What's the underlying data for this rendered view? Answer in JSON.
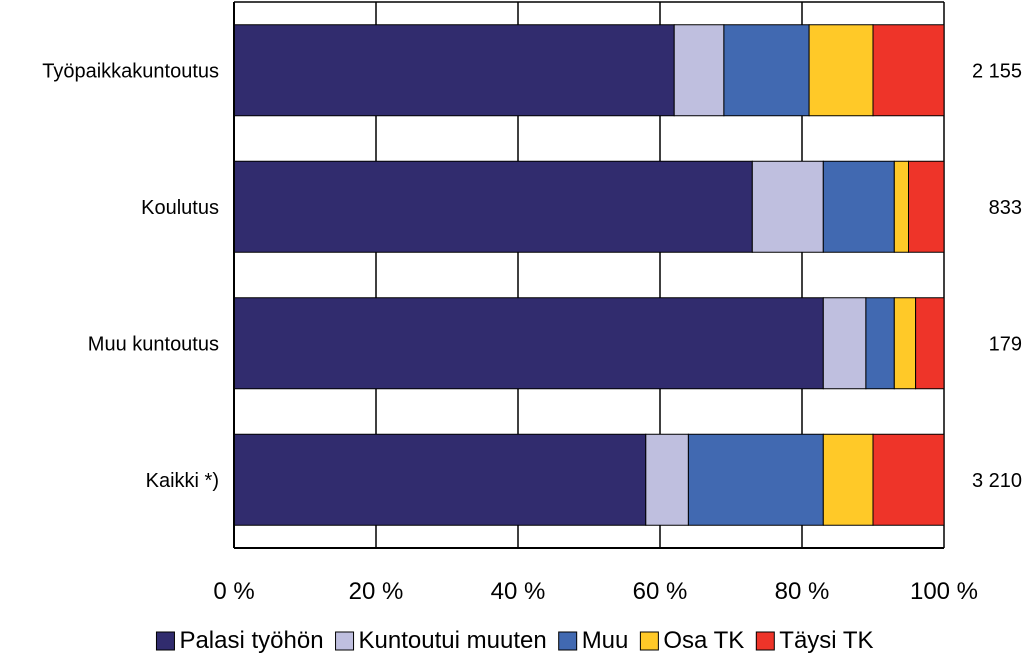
{
  "chart_data": {
    "type": "bar",
    "orientation": "horizontal",
    "stacked": "percent",
    "categories": [
      "Työpaikkakuntoutus",
      "Koulutus",
      "Muu kuntoutus",
      "Kaikki *)"
    ],
    "counts": [
      "2 155",
      "833",
      "179",
      "3 210"
    ],
    "series": [
      {
        "name": "Palasi työhön",
        "color": "#312C6E",
        "values": [
          62,
          73,
          83,
          58
        ]
      },
      {
        "name": "Kuntoutui muuten",
        "color": "#BFBFDF",
        "values": [
          7,
          10,
          6,
          6
        ]
      },
      {
        "name": "Muu",
        "color": "#4169B1",
        "values": [
          12,
          10,
          4,
          19
        ]
      },
      {
        "name": "Osa TK",
        "color": "#FFC928",
        "values": [
          9,
          2,
          3,
          7
        ]
      },
      {
        "name": "Täysi TK",
        "color": "#EE3429",
        "values": [
          10,
          5,
          4,
          10
        ]
      }
    ],
    "x_ticks": [
      "0 %",
      "20 %",
      "40 %",
      "60 %",
      "80 %",
      "100 %"
    ],
    "xlim": [
      0,
      100
    ],
    "grid": true,
    "legend_position": "bottom"
  }
}
